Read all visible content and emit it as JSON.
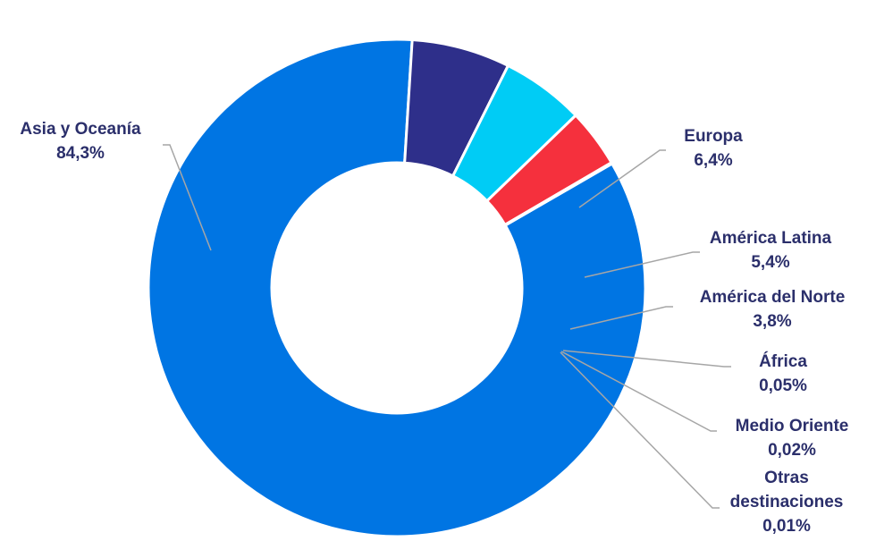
{
  "chart_data": {
    "type": "pie",
    "donut": true,
    "legend": "none",
    "slices": [
      {
        "label": "Asia y Oceanía",
        "value": 84.3,
        "value_label": "84,3%",
        "color": "#0075e3"
      },
      {
        "label": "Europa",
        "value": 6.4,
        "value_label": "6,4%",
        "color": "#2e2f8a"
      },
      {
        "label": "América Latina",
        "value": 5.4,
        "value_label": "5,4%",
        "color": "#00ccf5"
      },
      {
        "label": "América del Norte",
        "value": 3.8,
        "value_label": "3,8%",
        "color": "#f5303d"
      },
      {
        "label": "África",
        "value": 0.05,
        "value_label": "0,05%",
        "color": "#0a0a2a"
      },
      {
        "label": "Medio Oriente",
        "value": 0.02,
        "value_label": "0,02%",
        "color": "#f2f2f2"
      },
      {
        "label": [
          "Otras",
          "destinaciones"
        ],
        "value": 0.01,
        "value_label": "0,01%",
        "color": "#c8c8c8"
      }
    ]
  }
}
